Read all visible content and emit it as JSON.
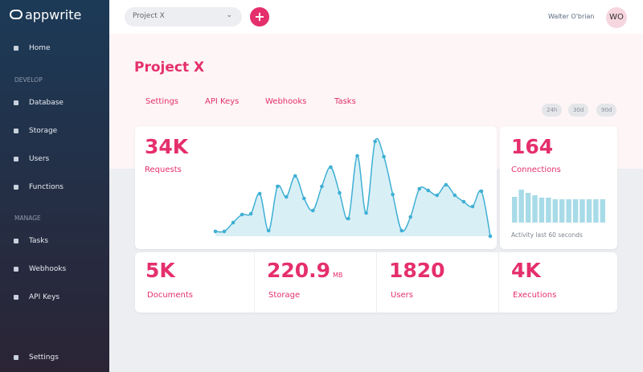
{
  "brand": "appwrite",
  "sidebar": {
    "home": "Home",
    "sections": [
      {
        "title": "DEVELOP",
        "items": [
          "Database",
          "Storage",
          "Users",
          "Functions"
        ]
      },
      {
        "title": "MANAGE",
        "items": [
          "Tasks",
          "Webhooks",
          "API Keys"
        ]
      }
    ],
    "settings": "Settings"
  },
  "topbar": {
    "project_select": "Project X",
    "user_name": "Walter O'brian",
    "avatar": "WO"
  },
  "page": {
    "title": "Project X",
    "tabs": [
      "Settings",
      "API Keys",
      "Webhooks",
      "Tasks"
    ],
    "ranges": [
      "24h",
      "30d",
      "90d"
    ]
  },
  "requests": {
    "value": "34K",
    "label": "Requests",
    "chart": {
      "type": "line",
      "color": "#3fb0d4",
      "ylim": [
        0,
        130
      ],
      "values": [
        6,
        6,
        17,
        27,
        28,
        53,
        7,
        62,
        49,
        75,
        47,
        32,
        62,
        86,
        54,
        22,
        100,
        29,
        118,
        99,
        52,
        7,
        24,
        59,
        57,
        51,
        64,
        51,
        43,
        37,
        56,
        0
      ]
    }
  },
  "connections": {
    "value": "164",
    "label": "Connections",
    "note": "Activity last 60 seconds",
    "chart": {
      "type": "bar",
      "color": "#a8dbe8",
      "ylim": [
        0,
        50
      ],
      "values": [
        32,
        41,
        37,
        34,
        31,
        31,
        29,
        29,
        29,
        29,
        29,
        29,
        29,
        29
      ]
    }
  },
  "stats": [
    {
      "value": "5K",
      "label": "Documents"
    },
    {
      "value": "220.9",
      "unit": "MB",
      "label": "Storage"
    },
    {
      "value": "1820",
      "label": "Users"
    },
    {
      "value": "4K",
      "label": "Executions"
    }
  ]
}
